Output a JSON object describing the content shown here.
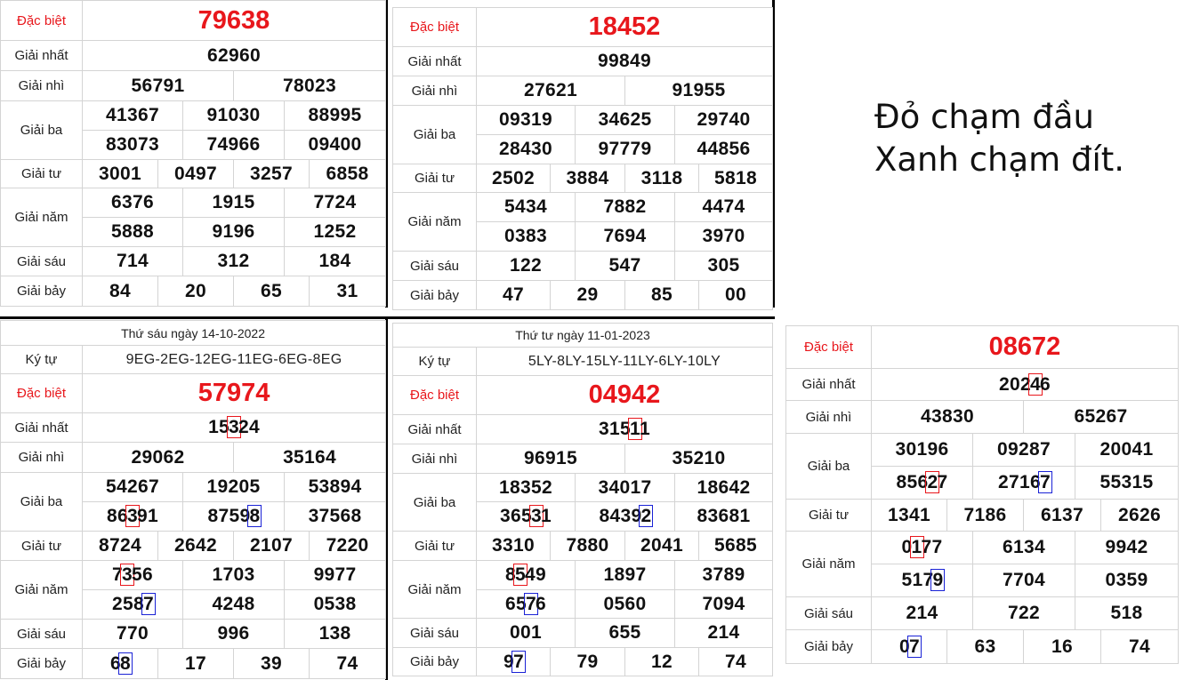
{
  "labels": {
    "special": "Đặc biệt",
    "first": "Giải nhất",
    "second": "Giải nhì",
    "third": "Giải ba",
    "fourth": "Giải tư",
    "fifth": "Giải năm",
    "sixth": "Giải sáu",
    "seventh": "Giải bảy",
    "code": "Ký tự"
  },
  "note": {
    "line1": "Đỏ chạm đầu",
    "line2": "Xanh chạm đít."
  },
  "colors": {
    "special_text": "#e8171c",
    "highlight_head": "#e8171c",
    "highlight_tail": "#1a22d6"
  },
  "tables": [
    {
      "special": "79638",
      "first": [
        "62960"
      ],
      "second": [
        "56791",
        "78023"
      ],
      "third": [
        "41367",
        "91030",
        "88995",
        "83073",
        "74966",
        "09400"
      ],
      "fourth": [
        "3001",
        "0497",
        "3257",
        "6858"
      ],
      "fifth": [
        "6376",
        "1915",
        "7724",
        "5888",
        "9196",
        "1252"
      ],
      "sixth": [
        "714",
        "312",
        "184"
      ],
      "seventh": [
        "84",
        "20",
        "65",
        "31"
      ]
    },
    {
      "special": "18452",
      "first": [
        "99849"
      ],
      "second": [
        "27621",
        "91955"
      ],
      "third": [
        "09319",
        "34625",
        "29740",
        "28430",
        "97779",
        "44856"
      ],
      "fourth": [
        "2502",
        "3884",
        "3118",
        "5818"
      ],
      "fifth": [
        "5434",
        "7882",
        "4474",
        "0383",
        "7694",
        "3970"
      ],
      "sixth": [
        "122",
        "547",
        "305"
      ],
      "seventh": [
        "47",
        "29",
        "85",
        "00"
      ]
    },
    {
      "header": "Thứ sáu ngày 14-10-2022",
      "code": "9EG-2EG-12EG-11EG-6EG-8EG",
      "special": "57974",
      "first": [
        "15324"
      ],
      "second": [
        "29062",
        "35164"
      ],
      "third": [
        "54267",
        "19205",
        "53894",
        "86391",
        "87598",
        "37568"
      ],
      "fourth": [
        "8724",
        "2642",
        "2107",
        "7220"
      ],
      "fifth": [
        "7356",
        "1703",
        "9977",
        "2587",
        "4248",
        "0538"
      ],
      "sixth": [
        "770",
        "996",
        "138"
      ],
      "seventh": [
        "68",
        "17",
        "39",
        "74"
      ]
    },
    {
      "header": "Thứ tư ngày 11-01-2023",
      "code": "5LY-8LY-15LY-11LY-6LY-10LY",
      "special": "04942",
      "first": [
        "31511"
      ],
      "second": [
        "96915",
        "35210"
      ],
      "third": [
        "18352",
        "34017",
        "18642",
        "36531",
        "84392",
        "83681"
      ],
      "fourth": [
        "3310",
        "7880",
        "2041",
        "5685"
      ],
      "fifth": [
        "8549",
        "1897",
        "3789",
        "6576",
        "0560",
        "7094"
      ],
      "sixth": [
        "001",
        "655",
        "214"
      ],
      "seventh": [
        "97",
        "79",
        "12",
        "74"
      ]
    },
    {
      "special": "08672",
      "first": [
        "20246"
      ],
      "second": [
        "43830",
        "65267"
      ],
      "third": [
        "30196",
        "09287",
        "20041",
        "85627",
        "27167",
        "55315"
      ],
      "fourth": [
        "1341",
        "7186",
        "6137",
        "2626"
      ],
      "fifth": [
        "0177",
        "6134",
        "9942",
        "5179",
        "7704",
        "0359"
      ],
      "sixth": [
        "214",
        "722",
        "518"
      ],
      "seventh": [
        "07",
        "63",
        "16",
        "74"
      ]
    }
  ],
  "highlights": [
    {
      "table": 2,
      "prize": "first",
      "index": 0,
      "pos": 2,
      "color": "red"
    },
    {
      "table": 2,
      "prize": "third",
      "index": 3,
      "pos": 2,
      "color": "red"
    },
    {
      "table": 2,
      "prize": "third",
      "index": 4,
      "pos": 4,
      "color": "blue"
    },
    {
      "table": 2,
      "prize": "fifth",
      "index": 0,
      "pos": 1,
      "color": "red"
    },
    {
      "table": 2,
      "prize": "fifth",
      "index": 3,
      "pos": 3,
      "color": "blue"
    },
    {
      "table": 2,
      "prize": "seventh",
      "index": 0,
      "pos": 1,
      "color": "blue"
    },
    {
      "table": 3,
      "prize": "first",
      "index": 0,
      "pos": 3,
      "color": "red"
    },
    {
      "table": 3,
      "prize": "third",
      "index": 3,
      "pos": 3,
      "color": "red"
    },
    {
      "table": 3,
      "prize": "third",
      "index": 4,
      "pos": 4,
      "color": "blue"
    },
    {
      "table": 3,
      "prize": "fifth",
      "index": 0,
      "pos": 1,
      "color": "red"
    },
    {
      "table": 3,
      "prize": "fifth",
      "index": 3,
      "pos": 2,
      "color": "blue"
    },
    {
      "table": 3,
      "prize": "seventh",
      "index": 0,
      "pos": 1,
      "color": "blue"
    },
    {
      "table": 4,
      "prize": "first",
      "index": 0,
      "pos": 3,
      "color": "red"
    },
    {
      "table": 4,
      "prize": "third",
      "index": 3,
      "pos": 3,
      "color": "red"
    },
    {
      "table": 4,
      "prize": "third",
      "index": 4,
      "pos": 4,
      "color": "blue"
    },
    {
      "table": 4,
      "prize": "fifth",
      "index": 0,
      "pos": 1,
      "color": "red"
    },
    {
      "table": 4,
      "prize": "fifth",
      "index": 3,
      "pos": 3,
      "color": "blue"
    },
    {
      "table": 4,
      "prize": "seventh",
      "index": 0,
      "pos": 1,
      "color": "blue"
    }
  ]
}
